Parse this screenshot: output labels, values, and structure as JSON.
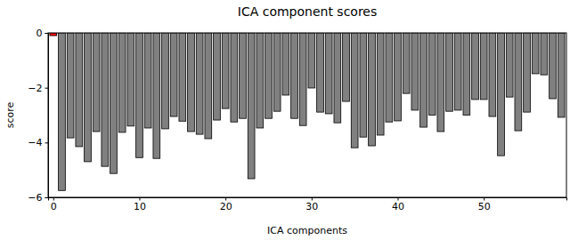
{
  "chart_data": {
    "type": "bar",
    "title": "ICA component scores",
    "x_label": "ICA components",
    "y_label": "score",
    "x": [
      0,
      1,
      2,
      3,
      4,
      5,
      6,
      7,
      8,
      9,
      10,
      11,
      12,
      13,
      14,
      15,
      16,
      17,
      18,
      19,
      20,
      21,
      22,
      23,
      24,
      25,
      26,
      27,
      28,
      29,
      30,
      31,
      32,
      33,
      34,
      35,
      36,
      37,
      38,
      39,
      40,
      41,
      42,
      43,
      44,
      45,
      46,
      47,
      48,
      49,
      50,
      51,
      52,
      53,
      54,
      55,
      56,
      57,
      58,
      59
    ],
    "values": [
      -0.1,
      -5.75,
      -3.83,
      -4.15,
      -4.7,
      -3.6,
      -4.87,
      -5.13,
      -3.63,
      -3.4,
      -4.55,
      -3.47,
      -4.58,
      -3.5,
      -3.05,
      -3.22,
      -3.6,
      -3.7,
      -3.86,
      -3.18,
      -2.76,
      -3.25,
      -3.12,
      -5.32,
      -3.47,
      -3.12,
      -2.86,
      -2.27,
      -3.12,
      -3.38,
      -2.01,
      -2.89,
      -2.95,
      -3.28,
      -2.5,
      -4.19,
      -3.8,
      -4.12,
      -3.73,
      -3.25,
      -3.21,
      -2.21,
      -2.82,
      -3.44,
      -3.0,
      -3.6,
      -2.86,
      -2.82,
      -3.0,
      -2.43,
      -2.43,
      -3.05,
      -4.48,
      -2.34,
      -3.57,
      -2.89,
      -1.49,
      -1.53,
      -2.4,
      -3.08
    ],
    "colors": [
      "#ff0000",
      "#808080",
      "#808080",
      "#808080",
      "#808080",
      "#808080",
      "#808080",
      "#808080",
      "#808080",
      "#808080",
      "#808080",
      "#808080",
      "#808080",
      "#808080",
      "#808080",
      "#808080",
      "#808080",
      "#808080",
      "#808080",
      "#808080",
      "#808080",
      "#808080",
      "#808080",
      "#808080",
      "#808080",
      "#808080",
      "#808080",
      "#808080",
      "#808080",
      "#808080",
      "#808080",
      "#808080",
      "#808080",
      "#808080",
      "#808080",
      "#808080",
      "#808080",
      "#808080",
      "#808080",
      "#808080",
      "#808080",
      "#808080",
      "#808080",
      "#808080",
      "#808080",
      "#808080",
      "#808080",
      "#808080",
      "#808080",
      "#808080",
      "#808080",
      "#808080",
      "#808080",
      "#808080",
      "#808080",
      "#808080",
      "#808080",
      "#808080",
      "#808080",
      "#808080"
    ],
    "xlim": [
      -0.6,
      59.6
    ],
    "xticks": [
      0,
      10,
      20,
      30,
      40,
      50
    ],
    "ylim": [
      -6,
      0
    ],
    "yticks": [
      -6,
      -4,
      -2,
      0
    ],
    "grid": false
  }
}
